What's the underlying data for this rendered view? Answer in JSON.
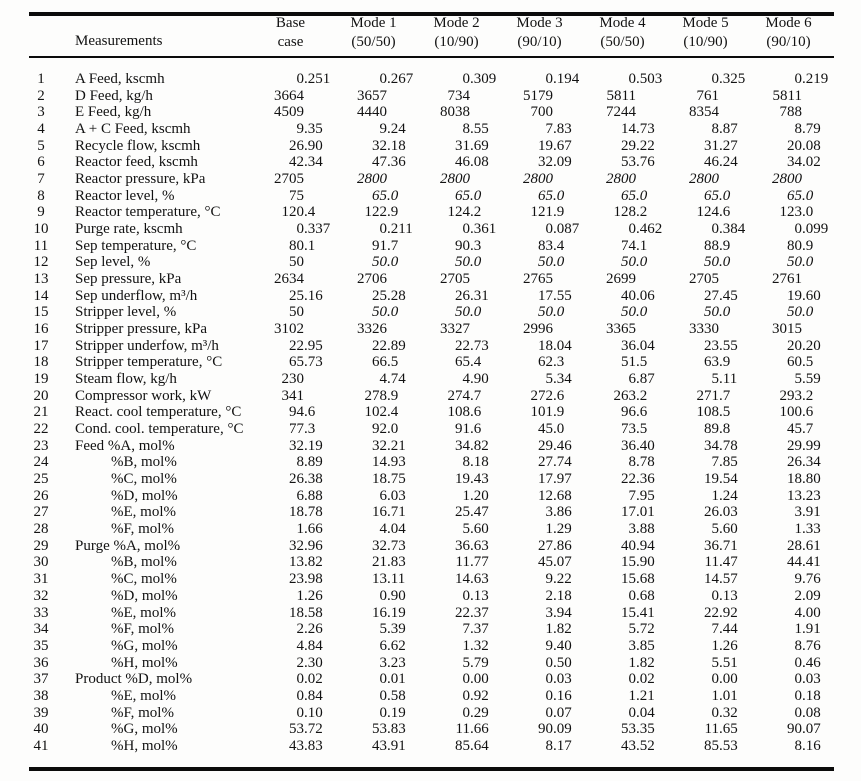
{
  "table": {
    "measurements_header": "Measurements",
    "columns": [
      {
        "line1": "Base",
        "line2": "case"
      },
      {
        "line1": "Mode 1",
        "line2": "(50/50)"
      },
      {
        "line1": "Mode 2",
        "line2": "(10/90)"
      },
      {
        "line1": "Mode 3",
        "line2": "(90/10)"
      },
      {
        "line1": "Mode 4",
        "line2": "(50/50)"
      },
      {
        "line1": "Mode 5",
        "line2": "(10/90)"
      },
      {
        "line1": "Mode 6",
        "line2": "(90/10)"
      }
    ],
    "rows": [
      {
        "num": "1",
        "label": "A Feed, kscmh",
        "indent": false,
        "italic_modes": false,
        "values": [
          "0.251",
          "0.267",
          "0.309",
          "0.194",
          "0.503",
          "0.325",
          "0.219"
        ]
      },
      {
        "num": "2",
        "label": "D Feed, kg/h",
        "indent": false,
        "italic_modes": false,
        "values": [
          "3664",
          "3657",
          "734",
          "5179",
          "5811",
          "761",
          "5811"
        ]
      },
      {
        "num": "3",
        "label": "E Feed, kg/h",
        "indent": false,
        "italic_modes": false,
        "values": [
          "4509",
          "4440",
          "8038",
          "700",
          "7244",
          "8354",
          "788"
        ]
      },
      {
        "num": "4",
        "label": "A + C Feed, kscmh",
        "indent": false,
        "italic_modes": false,
        "values": [
          "9.35",
          "9.24",
          "8.55",
          "7.83",
          "14.73",
          "8.87",
          "8.79"
        ]
      },
      {
        "num": "5",
        "label": "Recycle flow, kscmh",
        "indent": false,
        "italic_modes": false,
        "values": [
          "26.90",
          "32.18",
          "31.69",
          "19.67",
          "29.22",
          "31.27",
          "20.08"
        ]
      },
      {
        "num": "6",
        "label": "Reactor feed, kscmh",
        "indent": false,
        "italic_modes": false,
        "values": [
          "42.34",
          "47.36",
          "46.08",
          "32.09",
          "53.76",
          "46.24",
          "34.02"
        ]
      },
      {
        "num": "7",
        "label": "Reactor pressure, kPa",
        "indent": false,
        "italic_modes": true,
        "values": [
          "2705",
          "2800",
          "2800",
          "2800",
          "2800",
          "2800",
          "2800"
        ]
      },
      {
        "num": "8",
        "label": "Reactor level, %",
        "indent": false,
        "italic_modes": true,
        "values": [
          "75",
          "65.0",
          "65.0",
          "65.0",
          "65.0",
          "65.0",
          "65.0"
        ]
      },
      {
        "num": "9",
        "label": "Reactor temperature, °C",
        "indent": false,
        "italic_modes": false,
        "values": [
          "120.4",
          "122.9",
          "124.2",
          "121.9",
          "128.2",
          "124.6",
          "123.0"
        ]
      },
      {
        "num": "10",
        "label": "Purge rate, kscmh",
        "indent": false,
        "italic_modes": false,
        "values": [
          "0.337",
          "0.211",
          "0.361",
          "0.087",
          "0.462",
          "0.384",
          "0.099"
        ]
      },
      {
        "num": "11",
        "label": "Sep temperature, °C",
        "indent": false,
        "italic_modes": false,
        "values": [
          "80.1",
          "91.7",
          "90.3",
          "83.4",
          "74.1",
          "88.9",
          "80.9"
        ]
      },
      {
        "num": "12",
        "label": "Sep level, %",
        "indent": false,
        "italic_modes": true,
        "values": [
          "50",
          "50.0",
          "50.0",
          "50.0",
          "50.0",
          "50.0",
          "50.0"
        ]
      },
      {
        "num": "13",
        "label": "Sep pressure, kPa",
        "indent": false,
        "italic_modes": false,
        "values": [
          "2634",
          "2706",
          "2705",
          "2765",
          "2699",
          "2705",
          "2761"
        ]
      },
      {
        "num": "14",
        "label": "Sep underflow, m³/h",
        "indent": false,
        "italic_modes": false,
        "values": [
          "25.16",
          "25.28",
          "26.31",
          "17.55",
          "40.06",
          "27.45",
          "19.60"
        ]
      },
      {
        "num": "15",
        "label": "Stripper level, %",
        "indent": false,
        "italic_modes": true,
        "values": [
          "50",
          "50.0",
          "50.0",
          "50.0",
          "50.0",
          "50.0",
          "50.0"
        ]
      },
      {
        "num": "16",
        "label": "Stripper pressure, kPa",
        "indent": false,
        "italic_modes": false,
        "values": [
          "3102",
          "3326",
          "3327",
          "2996",
          "3365",
          "3330",
          "3015"
        ]
      },
      {
        "num": "17",
        "label": "Stripper underfow, m³/h",
        "indent": false,
        "italic_modes": false,
        "values": [
          "22.95",
          "22.89",
          "22.73",
          "18.04",
          "36.04",
          "23.55",
          "20.20"
        ]
      },
      {
        "num": "18",
        "label": "Stripper temperature, °C",
        "indent": false,
        "italic_modes": false,
        "values": [
          "65.73",
          "66.5",
          "65.4",
          "62.3",
          "51.5",
          "63.9",
          "60.5"
        ]
      },
      {
        "num": "19",
        "label": "Steam flow, kg/h",
        "indent": false,
        "italic_modes": false,
        "values": [
          "230",
          "4.74",
          "4.90",
          "5.34",
          "6.87",
          "5.11",
          "5.59"
        ]
      },
      {
        "num": "20",
        "label": "Compressor work, kW",
        "indent": false,
        "italic_modes": false,
        "values": [
          "341",
          "278.9",
          "274.7",
          "272.6",
          "263.2",
          "271.7",
          "293.2"
        ]
      },
      {
        "num": "21",
        "label": "React. cool temperature, °C",
        "indent": false,
        "italic_modes": false,
        "values": [
          "94.6",
          "102.4",
          "108.6",
          "101.9",
          "96.6",
          "108.5",
          "100.6"
        ]
      },
      {
        "num": "22",
        "label": "Cond. cool. temperature, °C",
        "indent": false,
        "italic_modes": false,
        "values": [
          "77.3",
          "92.0",
          "91.6",
          "45.0",
          "73.5",
          "89.8",
          "45.7"
        ]
      },
      {
        "num": "23",
        "label": "Feed %A, mol%",
        "indent": false,
        "italic_modes": false,
        "values": [
          "32.19",
          "32.21",
          "34.82",
          "29.46",
          "36.40",
          "34.78",
          "29.99"
        ]
      },
      {
        "num": "24",
        "label": "%B, mol%",
        "indent": true,
        "italic_modes": false,
        "values": [
          "8.89",
          "14.93",
          "8.18",
          "27.74",
          "8.78",
          "7.85",
          "26.34"
        ]
      },
      {
        "num": "25",
        "label": "%C, mol%",
        "indent": true,
        "italic_modes": false,
        "values": [
          "26.38",
          "18.75",
          "19.43",
          "17.97",
          "22.36",
          "19.54",
          "18.80"
        ]
      },
      {
        "num": "26",
        "label": "%D, mol%",
        "indent": true,
        "italic_modes": false,
        "values": [
          "6.88",
          "6.03",
          "1.20",
          "12.68",
          "7.95",
          "1.24",
          "13.23"
        ]
      },
      {
        "num": "27",
        "label": "%E, mol%",
        "indent": true,
        "italic_modes": false,
        "values": [
          "18.78",
          "16.71",
          "25.47",
          "3.86",
          "17.01",
          "26.03",
          "3.91"
        ]
      },
      {
        "num": "28",
        "label": "%F, mol%",
        "indent": true,
        "italic_modes": false,
        "values": [
          "1.66",
          "4.04",
          "5.60",
          "1.29",
          "3.88",
          "5.60",
          "1.33"
        ]
      },
      {
        "num": "29",
        "label": "Purge %A, mol%",
        "indent": false,
        "italic_modes": false,
        "values": [
          "32.96",
          "32.73",
          "36.63",
          "27.86",
          "40.94",
          "36.71",
          "28.61"
        ]
      },
      {
        "num": "30",
        "label": "%B, mol%",
        "indent": true,
        "italic_modes": false,
        "values": [
          "13.82",
          "21.83",
          "11.77",
          "45.07",
          "15.90",
          "11.47",
          "44.41"
        ]
      },
      {
        "num": "31",
        "label": "%C, mol%",
        "indent": true,
        "italic_modes": false,
        "values": [
          "23.98",
          "13.11",
          "14.63",
          "9.22",
          "15.68",
          "14.57",
          "9.76"
        ]
      },
      {
        "num": "32",
        "label": "%D, mol%",
        "indent": true,
        "italic_modes": false,
        "values": [
          "1.26",
          "0.90",
          "0.13",
          "2.18",
          "0.68",
          "0.13",
          "2.09"
        ]
      },
      {
        "num": "33",
        "label": "%E, mol%",
        "indent": true,
        "italic_modes": false,
        "values": [
          "18.58",
          "16.19",
          "22.37",
          "3.94",
          "15.41",
          "22.92",
          "4.00"
        ]
      },
      {
        "num": "34",
        "label": "%F, mol%",
        "indent": true,
        "italic_modes": false,
        "values": [
          "2.26",
          "5.39",
          "7.37",
          "1.82",
          "5.72",
          "7.44",
          "1.91"
        ]
      },
      {
        "num": "35",
        "label": "%G, mol%",
        "indent": true,
        "italic_modes": false,
        "values": [
          "4.84",
          "6.62",
          "1.32",
          "9.40",
          "3.85",
          "1.26",
          "8.76"
        ]
      },
      {
        "num": "36",
        "label": "%H, mol%",
        "indent": true,
        "italic_modes": false,
        "values": [
          "2.30",
          "3.23",
          "5.79",
          "0.50",
          "1.82",
          "5.51",
          "0.46"
        ]
      },
      {
        "num": "37",
        "label": "Product %D, mol%",
        "indent": false,
        "italic_modes": false,
        "values": [
          "0.02",
          "0.01",
          "0.00",
          "0.03",
          "0.02",
          "0.00",
          "0.03"
        ]
      },
      {
        "num": "38",
        "label": "%E, mol%",
        "indent": true,
        "italic_modes": false,
        "values": [
          "0.84",
          "0.58",
          "0.92",
          "0.16",
          "1.21",
          "1.01",
          "0.18"
        ]
      },
      {
        "num": "39",
        "label": "%F, mol%",
        "indent": true,
        "italic_modes": false,
        "values": [
          "0.10",
          "0.19",
          "0.29",
          "0.07",
          "0.04",
          "0.32",
          "0.08"
        ]
      },
      {
        "num": "40",
        "label": "%G, mol%",
        "indent": true,
        "italic_modes": false,
        "values": [
          "53.72",
          "53.83",
          "11.66",
          "90.09",
          "53.35",
          "11.65",
          "90.07"
        ]
      },
      {
        "num": "41",
        "label": "%H, mol%",
        "indent": true,
        "italic_modes": false,
        "values": [
          "43.83",
          "43.91",
          "85.64",
          "8.17",
          "43.52",
          "85.53",
          "8.16"
        ]
      }
    ]
  }
}
